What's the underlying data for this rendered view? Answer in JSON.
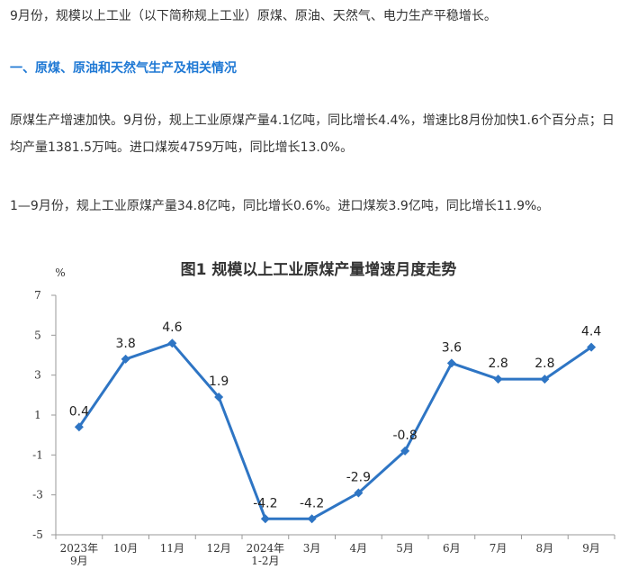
{
  "article": {
    "intro": "9月份，规模以上工业（以下简称规上工业）原煤、原油、天然气、电力生产平稳增长。",
    "heading": "一、原煤、原油和天然气生产及相关情况",
    "body1": "原煤生产增速加快。9月份，规上工业原煤产量4.1亿吨，同比增长4.4%，增速比8月份加快1.6个百分点；日均产量1381.5万吨。进口煤炭4759万吨，同比增长13.0%。",
    "body2": "1—9月份，规上工业原煤产量34.8亿吨，同比增长0.6%。进口煤炭3.9亿吨，同比增长11.9%。",
    "heading_color": "#1e78d4"
  },
  "chart_data": {
    "type": "line",
    "title": "图1  规模以上工业原煤产量增速月度走势",
    "ylabel": "%",
    "ylim": [
      -5,
      7
    ],
    "yticks": [
      "7",
      "5",
      "3",
      "1",
      "-1",
      "-3",
      "-5"
    ],
    "categories": [
      [
        "2023年",
        "9月"
      ],
      [
        "10月"
      ],
      [
        "11月"
      ],
      [
        "12月"
      ],
      [
        "2024年",
        "1-2月"
      ],
      [
        "3月"
      ],
      [
        "4月"
      ],
      [
        "5月"
      ],
      [
        "6月"
      ],
      [
        "7月"
      ],
      [
        "8月"
      ],
      [
        "9月"
      ]
    ],
    "values": [
      0.4,
      3.8,
      4.6,
      1.9,
      -4.2,
      -4.2,
      -2.9,
      -0.8,
      3.6,
      2.8,
      2.8,
      4.4
    ],
    "data_labels": [
      "0.4",
      "3.8",
      "4.6",
      "1.9",
      "-4.2",
      "-4.2",
      "-2.9",
      "-0.8",
      "3.6",
      "2.8",
      "2.8",
      "4.4"
    ],
    "line_color": "#2e75c4",
    "grid": false,
    "legend": "none"
  }
}
